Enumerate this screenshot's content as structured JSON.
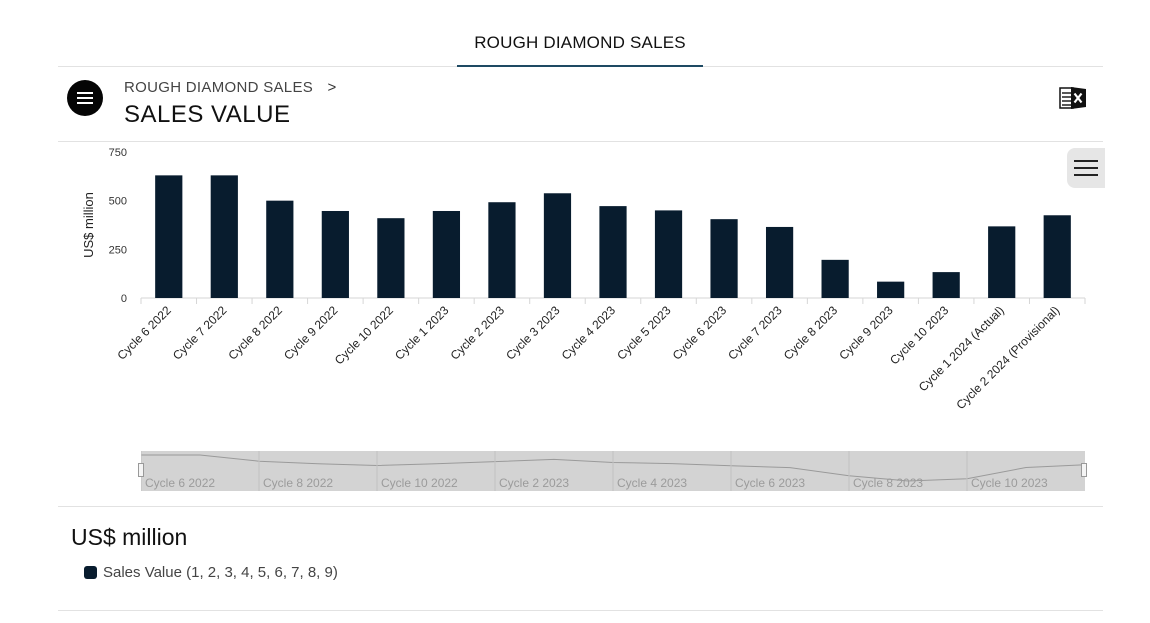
{
  "top_tab": {
    "label": "ROUGH DIAMOND SALES"
  },
  "header": {
    "breadcrumb": "ROUGH DIAMOND SALES",
    "breadcrumb_separator": ">",
    "title": "SALES VALUE"
  },
  "icons": {
    "menu": "menu-icon",
    "excel": "excel-export-icon",
    "chart_menu": "hamburger-icon"
  },
  "colors": {
    "bar": "#081c2e",
    "accent": "#1e4a63",
    "navigator": "#d3d3d3"
  },
  "chart_data": {
    "type": "bar",
    "title": "",
    "xlabel": "",
    "ylabel": "US$ million",
    "ylim": [
      0,
      750
    ],
    "yticks": [
      0,
      250,
      500,
      750
    ],
    "categories": [
      "Cycle 6 2022",
      "Cycle 7 2022",
      "Cycle 8 2022",
      "Cycle 9 2022",
      "Cycle 10 2022",
      "Cycle 1 2023",
      "Cycle 2 2023",
      "Cycle 3 2023",
      "Cycle 4 2023",
      "Cycle 5 2023",
      "Cycle 6 2023",
      "Cycle 7 2023",
      "Cycle 8 2023",
      "Cycle 9 2023",
      "Cycle 10 2023",
      "Cycle 1 2024 (Actual)",
      "Cycle 2 2024 (Provisional)"
    ],
    "series": [
      {
        "name": "Sales Value (1, 2, 3, 4, 5, 6, 7, 8, 9)",
        "values": [
          630,
          630,
          500,
          447,
          410,
          447,
          492,
          538,
          472,
          450,
          405,
          365,
          196,
          84,
          133,
          368,
          425
        ]
      }
    ],
    "grid": false,
    "legend_position": "bottom-left",
    "navigator_labels": [
      "Cycle 6 2022",
      "Cycle 8 2022",
      "Cycle 10 2022",
      "Cycle 2 2023",
      "Cycle 4 2023",
      "Cycle 6 2023",
      "Cycle 8 2023",
      "Cycle 10 2023"
    ]
  },
  "legend": {
    "title": "US$ million"
  }
}
